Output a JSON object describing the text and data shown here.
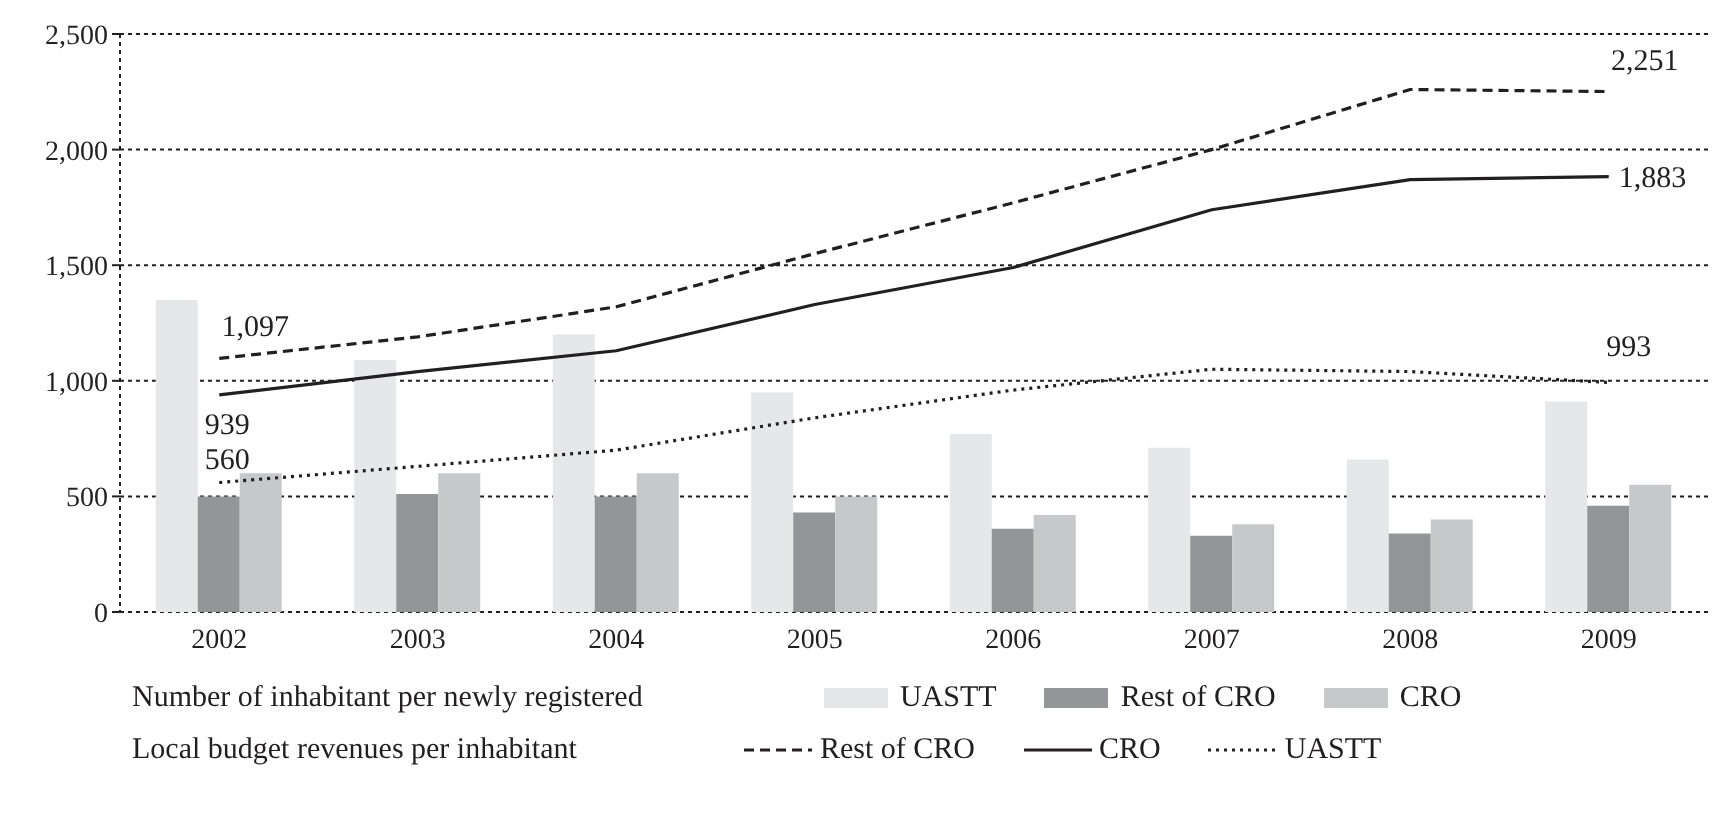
{
  "chart_data": {
    "type": "bar",
    "categories": [
      "2002",
      "2003",
      "2004",
      "2005",
      "2006",
      "2007",
      "2008",
      "2009"
    ],
    "series": [
      {
        "name": "UASTT",
        "color": "#e6e7e8",
        "values": [
          1350,
          1090,
          1200,
          950,
          770,
          710,
          660,
          910
        ]
      },
      {
        "name": "Rest of CRO",
        "color": "#939598",
        "values": [
          500,
          510,
          500,
          430,
          360,
          330,
          340,
          460
        ]
      },
      {
        "name": "CRO",
        "color": "#c7c8ca",
        "values": [
          600,
          600,
          600,
          500,
          420,
          380,
          400,
          550
        ]
      },
      {
        "name": "Rest of CRO",
        "type": "line",
        "color": "#231f20",
        "line_style": "dashed",
        "values": [
          1097,
          1190,
          1320,
          1550,
          1770,
          2000,
          2260,
          2251
        ]
      },
      {
        "name": "CRO",
        "type": "line",
        "color": "#231f20",
        "line_style": "solid",
        "values": [
          939,
          1040,
          1130,
          1330,
          1490,
          1740,
          1870,
          1883
        ]
      },
      {
        "name": "UASTT",
        "type": "line",
        "color": "#231f20",
        "line_style": "dotted",
        "values": [
          560,
          630,
          700,
          840,
          960,
          1050,
          1040,
          993
        ]
      }
    ],
    "ylim": [
      0,
      2500
    ],
    "yticks": [
      0,
      {
        "value": 500,
        "label": "500"
      },
      {
        "value": 1000,
        "label": "1,000"
      },
      {
        "value": 1500,
        "label": "1,500"
      },
      {
        "value": 2000,
        "label": "2,000"
      },
      {
        "value": 2500,
        "label": "2,500"
      }
    ],
    "grid": "y",
    "legend": "bottom",
    "marker": "none",
    "annotations": [
      "Number of inhabitant per newly registered",
      "Local budget revenues per inhabitant",
      {
        "text": "1,097",
        "x": "2002",
        "y": 1097
      },
      {
        "text": "939",
        "x": "2002",
        "y": 939
      },
      {
        "text": "560",
        "x": "2002",
        "y": 560
      },
      {
        "text": "2,251",
        "x": "2009",
        "y": 2251
      },
      {
        "text": "1,883",
        "x": "2009",
        "y": 1883
      },
      {
        "text": "993",
        "x": "2009",
        "y": 993
      }
    ]
  }
}
